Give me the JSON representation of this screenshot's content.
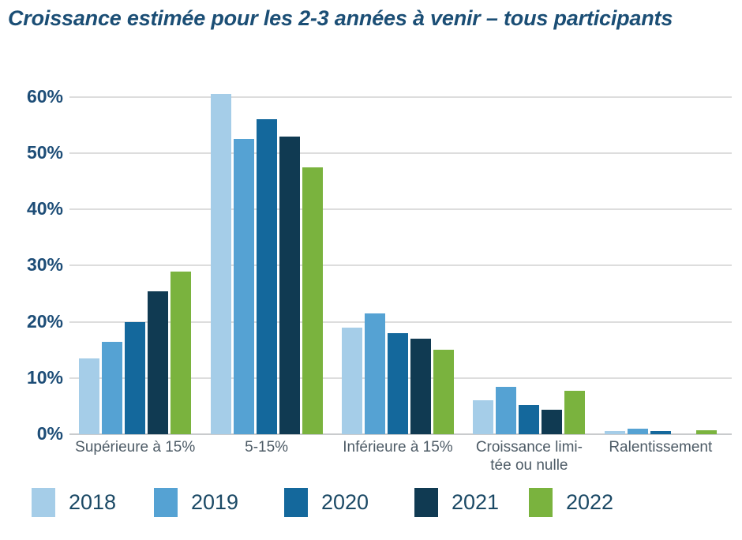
{
  "title": "Croissance estimée pour les 2-3 années à venir – tous participants",
  "chart_data": {
    "type": "bar",
    "title": "Croissance estimée pour les 2-3 années à venir – tous participants",
    "categories": [
      "Supérieure à 15%",
      "5-15%",
      "Inférieure à 15%",
      "Croissance limitée ou nulle",
      "Ralentissement"
    ],
    "category_display_lines": [
      [
        "Supérieure à 15%"
      ],
      [
        "5-15%"
      ],
      [
        "Inférieure à 15%"
      ],
      [
        "Croissance limi-",
        "tée ou nulle"
      ],
      [
        "Ralentissement"
      ]
    ],
    "series": [
      {
        "name": "2018",
        "color": "#a5cde8",
        "values": [
          13.5,
          60.5,
          19.0,
          6.0,
          0.5
        ]
      },
      {
        "name": "2019",
        "color": "#55a2d3",
        "values": [
          16.5,
          52.5,
          21.5,
          8.5,
          1.0
        ]
      },
      {
        "name": "2020",
        "color": "#14689c",
        "values": [
          20.0,
          56.0,
          18.0,
          5.2,
          0.5
        ]
      },
      {
        "name": "2021",
        "color": "#103a52",
        "values": [
          25.5,
          53.0,
          17.0,
          4.3,
          0.0
        ]
      },
      {
        "name": "2022",
        "color": "#7ab33e",
        "values": [
          29.0,
          47.5,
          15.0,
          7.7,
          0.7
        ]
      }
    ],
    "xlabel": "",
    "ylabel": "",
    "ylim": [
      0,
      64
    ],
    "y_tick_step": 10,
    "y_ticks": [
      "0%",
      "10%",
      "20%",
      "30%",
      "40%",
      "50%",
      "60%"
    ],
    "grid": true,
    "legend_position": "bottom",
    "unit": "%"
  }
}
